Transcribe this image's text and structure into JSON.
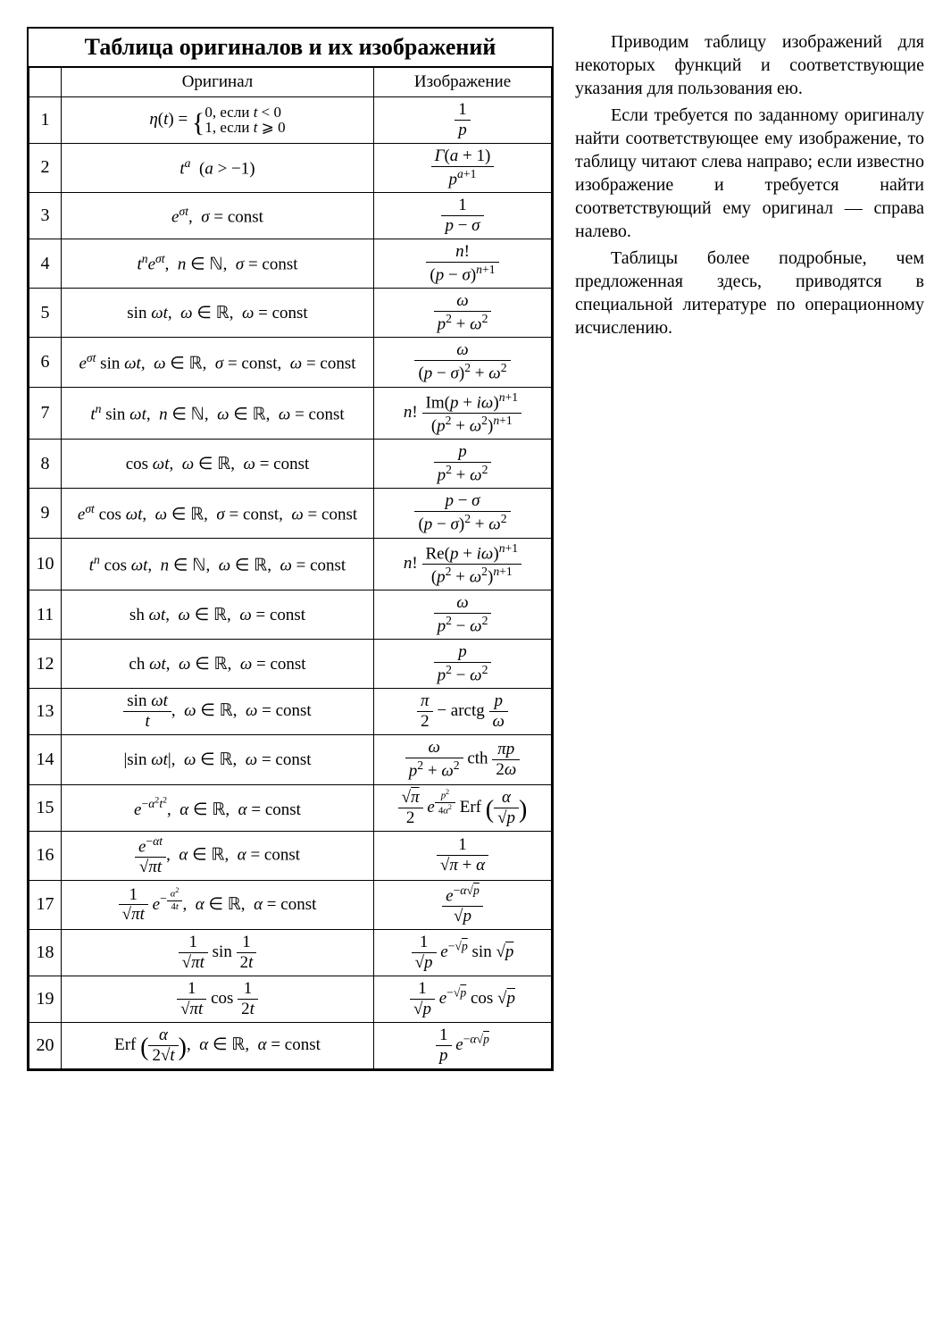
{
  "table": {
    "title": "Таблица оригиналов и их изображений",
    "headers": {
      "num": "",
      "original": "Оригинал",
      "image": "Изображение"
    },
    "rows": [
      {
        "n": "1",
        "orig": "η(t) = { 0, если t < 0; 1, если t ⩾ 0 }",
        "img": "1 / p"
      },
      {
        "n": "2",
        "orig": "tᵃ  (a > −1)",
        "img": "Γ(a+1) / pᵃ⁺¹"
      },
      {
        "n": "3",
        "orig": "eᵒᵗ, σ = const",
        "img": "1 / (p − σ)"
      },
      {
        "n": "4",
        "orig": "tⁿeᵒᵗ, n ∈ ℕ, σ = const",
        "img": "n! / (p − σ)ⁿ⁺¹"
      },
      {
        "n": "5",
        "orig": "sin ωt, ω ∈ ℝ, ω = const",
        "img": "ω / (p² + ω²)"
      },
      {
        "n": "6",
        "orig": "eᵒᵗ sin ωt, ω ∈ ℝ, σ = const, ω = const",
        "img": "ω / ((p−σ)² + ω²)"
      },
      {
        "n": "7",
        "orig": "tⁿ sin ωt, n ∈ ℕ, ω ∈ ℝ, ω = const",
        "img": "n! Im(p+iω)ⁿ⁺¹ / (p²+ω²)ⁿ⁺¹"
      },
      {
        "n": "8",
        "orig": "cos ωt, ω ∈ ℝ, ω = const",
        "img": "p / (p² + ω²)"
      },
      {
        "n": "9",
        "orig": "eᵒᵗ cos ωt, ω ∈ ℝ, σ = const, ω = const",
        "img": "(p − σ) / ((p−σ)² + ω²)"
      },
      {
        "n": "10",
        "orig": "tⁿ cos ωt, n ∈ ℕ, ω ∈ ℝ, ω = const",
        "img": "n! Re(p+iω)ⁿ⁺¹ / (p²+ω²)ⁿ⁺¹"
      },
      {
        "n": "11",
        "orig": "sh ωt, ω ∈ ℝ, ω = const",
        "img": "ω / (p² − ω²)"
      },
      {
        "n": "12",
        "orig": "ch ωt, ω ∈ ℝ, ω = const",
        "img": "p / (p² − ω²)"
      },
      {
        "n": "13",
        "orig": "(sin ωt)/t, ω ∈ ℝ, ω = const",
        "img": "π/2 − arctg(p/ω)"
      },
      {
        "n": "14",
        "orig": "|sin ωt|, ω ∈ ℝ, ω = const",
        "img": "ω/(p²+ω²) · cth(πp/2ω)"
      },
      {
        "n": "15",
        "orig": "e^(−α²t²), α ∈ ℝ, α = const",
        "img": "(√π/2) e^(p²/4α²) Erf(α/√p)"
      },
      {
        "n": "16",
        "orig": "e^(−αt)/√(πt), α ∈ ℝ, α = const",
        "img": "1 / √(π + α)"
      },
      {
        "n": "17",
        "orig": "(1/√(πt)) e^(−α²/4t), α ∈ ℝ, α = const",
        "img": "e^(−α√p) / √p"
      },
      {
        "n": "18",
        "orig": "(1/√(πt)) sin(1/2t)",
        "img": "(1/√p) e^(−√p) sin √p"
      },
      {
        "n": "19",
        "orig": "(1/√(πt)) cos(1/2t)",
        "img": "(1/√p) e^(−√p) cos √p"
      },
      {
        "n": "20",
        "orig": "Erf(α/(2√t)), α ∈ ℝ, α = const",
        "img": "(1/p) e^(−α√p)"
      }
    ]
  },
  "side": {
    "p1": "Приводим таблицу изображений для некоторых функций и соответствующие указания для пользования ею.",
    "p2": "Если требуется по заданному оригиналу найти соответствующее ему изображение, то таблицу читают слева направо; если известно изображение и требуется найти соответствующий ему оригинал — справа налево.",
    "p3": "Таблицы более подробные, чем предложенная здесь, приводятся в специальной литературе по операционному исчислению."
  }
}
